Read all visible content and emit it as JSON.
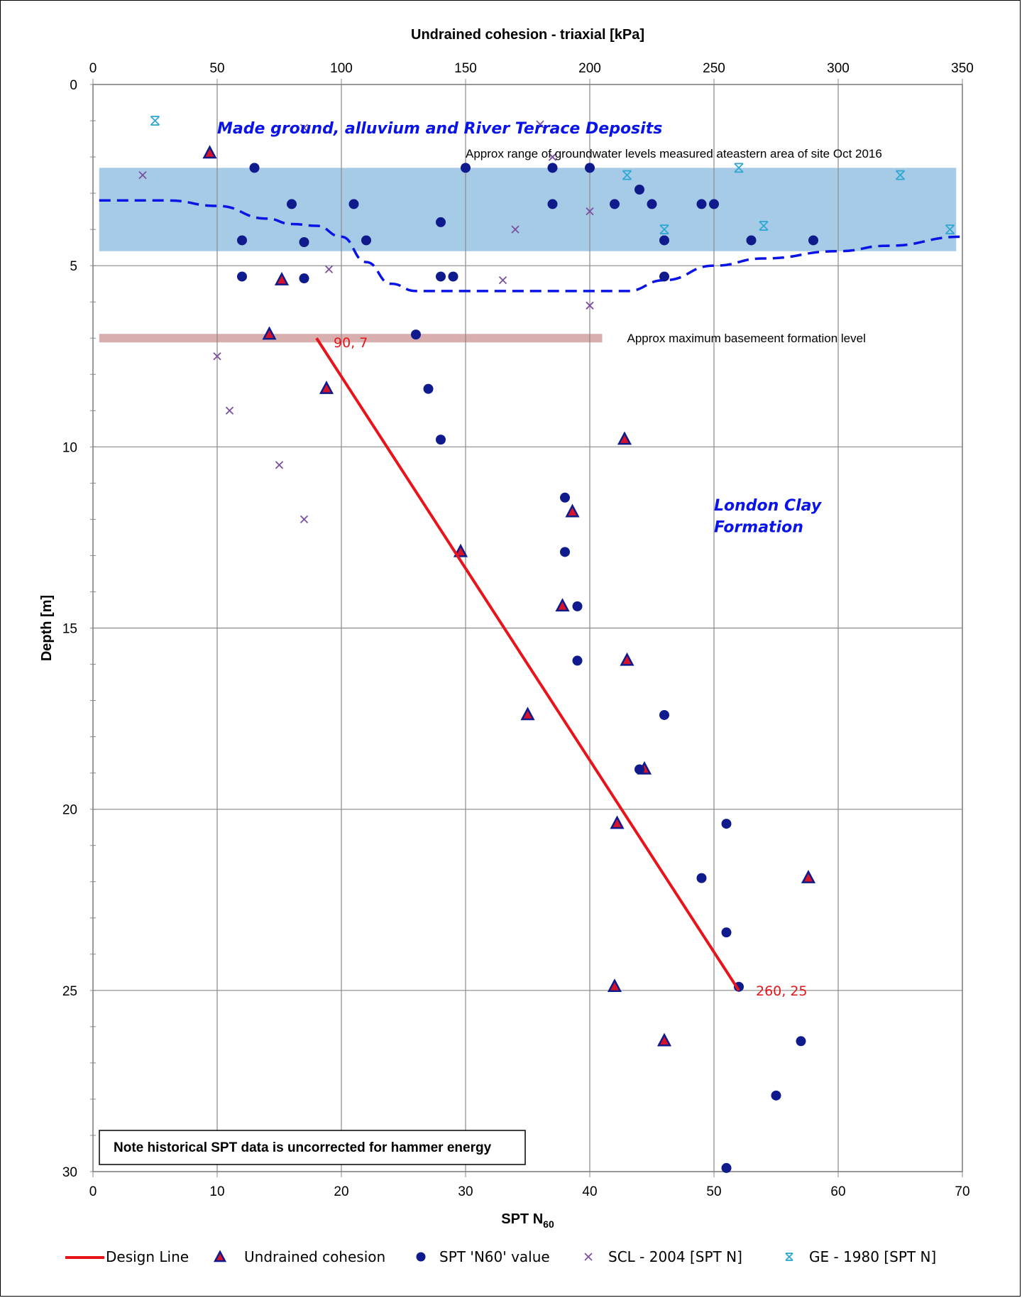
{
  "chart_data": {
    "type": "scatter",
    "title": "",
    "top_axis": {
      "label": "Undrained cohesion - triaxial [kPa]",
      "range": [
        0,
        350
      ],
      "ticks": [
        "0",
        "50",
        "100",
        "150",
        "200",
        "250",
        "300",
        "350"
      ]
    },
    "bottom_axis": {
      "label_main": "SPT N",
      "label_sub": "60",
      "range": [
        0,
        70
      ],
      "ticks": [
        "0",
        "10",
        "20",
        "30",
        "40",
        "50",
        "60",
        "70"
      ]
    },
    "y_axis": {
      "label": "Depth [m]",
      "range": [
        0,
        30
      ],
      "inverted": true,
      "ticks": [
        "0",
        "5",
        "10",
        "15",
        "20",
        "25",
        "30"
      ]
    },
    "grid": true,
    "legend_position": "bottom",
    "colors": {
      "design_line": "#e8141c",
      "marker_fill": "#0f1a8c",
      "triangle_fill": "#d5142a",
      "scl": "#7b4fa0",
      "ge": "#2ea7d3",
      "groundwater_band": "#a6cbe6",
      "basement_band": "#d9aeae",
      "dashed_line": "#0a14e6",
      "annotation_blue": "#0a14e6"
    },
    "series": [
      {
        "name": "Design Line",
        "axis": "top",
        "kind": "line",
        "points": [
          [
            90,
            7
          ],
          [
            260,
            25
          ]
        ]
      },
      {
        "name": "Undrained cohesion",
        "axis": "top",
        "kind": "triangle",
        "points": [
          [
            47,
            1.9
          ],
          [
            76,
            5.4
          ],
          [
            71,
            6.9
          ],
          [
            94,
            8.4
          ],
          [
            214,
            9.8
          ],
          [
            193,
            11.8
          ],
          [
            148,
            12.9
          ],
          [
            189,
            14.4
          ],
          [
            215,
            15.9
          ],
          [
            175,
            17.4
          ],
          [
            222,
            18.9
          ],
          [
            211,
            20.4
          ],
          [
            288,
            21.9
          ],
          [
            210,
            24.9
          ],
          [
            230,
            26.4
          ]
        ]
      },
      {
        "name": "SPT 'N60' value",
        "axis": "bottom",
        "kind": "circle",
        "points": [
          [
            13,
            2.3
          ],
          [
            30,
            2.3
          ],
          [
            37,
            2.3
          ],
          [
            40,
            2.3
          ],
          [
            16,
            3.3
          ],
          [
            21,
            3.3
          ],
          [
            37,
            3.3
          ],
          [
            42,
            3.3
          ],
          [
            45,
            3.3
          ],
          [
            49,
            3.3
          ],
          [
            50,
            3.3
          ],
          [
            44,
            2.9
          ],
          [
            28,
            3.8
          ],
          [
            12,
            4.3
          ],
          [
            17,
            4.35
          ],
          [
            22,
            4.3
          ],
          [
            46,
            4.3
          ],
          [
            53,
            4.3
          ],
          [
            58,
            4.3
          ],
          [
            12,
            5.3
          ],
          [
            17,
            5.35
          ],
          [
            28,
            5.3
          ],
          [
            29,
            5.3
          ],
          [
            46,
            5.3
          ],
          [
            26,
            6.9
          ],
          [
            27,
            8.4
          ],
          [
            28,
            9.8
          ],
          [
            38,
            11.4
          ],
          [
            38,
            12.9
          ],
          [
            39,
            14.4
          ],
          [
            39,
            15.9
          ],
          [
            46,
            17.4
          ],
          [
            44,
            18.9
          ],
          [
            51,
            20.4
          ],
          [
            49,
            21.9
          ],
          [
            51,
            23.4
          ],
          [
            52,
            24.9
          ],
          [
            57,
            26.4
          ],
          [
            55,
            27.9
          ],
          [
            51,
            29.9
          ]
        ]
      },
      {
        "name": "SCL - 2004 [SPT N]",
        "axis": "bottom",
        "kind": "x",
        "points": [
          [
            4,
            2.5
          ],
          [
            17,
            1.2
          ],
          [
            36,
            1.1
          ],
          [
            37,
            2.0
          ],
          [
            34,
            4.0
          ],
          [
            40,
            3.5
          ],
          [
            19,
            5.1
          ],
          [
            33,
            5.4
          ],
          [
            40,
            6.1
          ],
          [
            10,
            7.5
          ],
          [
            11,
            9.0
          ],
          [
            15,
            10.5
          ],
          [
            17,
            12.0
          ]
        ]
      },
      {
        "name": "GE - 1980 [SPT N]",
        "axis": "bottom",
        "kind": "asterisk",
        "points": [
          [
            5,
            1.0
          ],
          [
            43,
            2.5
          ],
          [
            46,
            4.0
          ],
          [
            52,
            2.3
          ],
          [
            54,
            3.9
          ],
          [
            65,
            2.5
          ],
          [
            69,
            4.0
          ]
        ]
      }
    ],
    "groundwater_band": {
      "depth_from": 2.3,
      "depth_to": 4.6,
      "x_from": 0.5,
      "x_to": 69.5
    },
    "basement_band": {
      "depth": 7.0,
      "x_from": 0.5,
      "x_to": 41
    },
    "groundwater_dashed_line": [
      [
        0.5,
        3.2
      ],
      [
        6,
        3.2
      ],
      [
        10,
        3.35
      ],
      [
        14,
        3.7
      ],
      [
        16,
        3.85
      ],
      [
        18,
        3.9
      ],
      [
        20,
        4.2
      ],
      [
        22,
        4.9
      ],
      [
        24,
        5.5
      ],
      [
        26,
        5.7
      ],
      [
        30,
        5.7
      ],
      [
        40,
        5.7
      ],
      [
        43,
        5.7
      ],
      [
        46,
        5.4
      ],
      [
        50,
        5.0
      ],
      [
        54,
        4.8
      ],
      [
        60,
        4.6
      ],
      [
        64,
        4.45
      ],
      [
        70,
        4.2
      ]
    ],
    "annotations": {
      "zone_upper": "Made ground, alluvium and River Terrace Deposits",
      "zone_lower_line1": "London Clay",
      "zone_lower_line2": "Formation",
      "groundwater_note": "Approx range of groundwater levels measured ateastern area of site Oct 2016",
      "basement_note": "Approx maximum basemeent formation level",
      "start_label": "90, 7",
      "end_label": "260, 25",
      "hammer_note": "Note historical SPT data is uncorrected for hammer energy"
    }
  }
}
